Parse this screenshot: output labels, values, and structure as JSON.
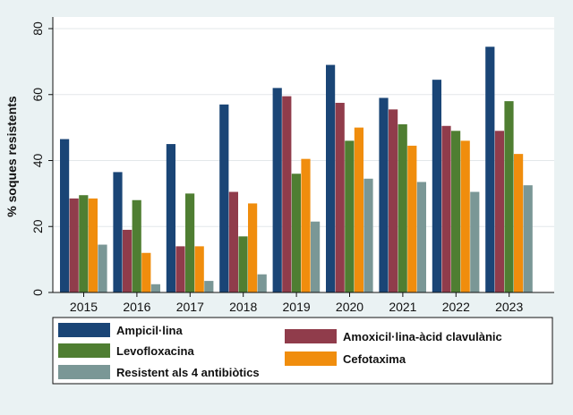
{
  "chart_data": {
    "type": "bar",
    "ylabel": "% soques resistents",
    "xlabel": "",
    "ylim": [
      0,
      80
    ],
    "yticks": [
      0,
      20,
      40,
      60,
      80
    ],
    "grid": true,
    "legend_position": "bottom",
    "categories": [
      "2015",
      "2016",
      "2017",
      "2018",
      "2019",
      "2020",
      "2021",
      "2022",
      "2023"
    ],
    "series": [
      {
        "name": "Ampicil·lina",
        "color": "#1a4576",
        "values": [
          46.5,
          36.5,
          45,
          57,
          62,
          69,
          59,
          64.5,
          74.5
        ]
      },
      {
        "name": "Amoxicil·lina-àcid clavulànic",
        "color": "#903c4b",
        "values": [
          28.5,
          19,
          14,
          30.5,
          59.5,
          57.5,
          55.5,
          50.5,
          49
        ]
      },
      {
        "name": "Levofloxacina",
        "color": "#4f7e32",
        "values": [
          29.5,
          28,
          30,
          17,
          36,
          46,
          51,
          49,
          58
        ]
      },
      {
        "name": "Cefotaxima",
        "color": "#f08d0d",
        "values": [
          28.5,
          12,
          14,
          27,
          40.5,
          50,
          44.5,
          46,
          42
        ]
      },
      {
        "name": "Resistent als 4 antibiòtics",
        "color": "#7a9796",
        "values": [
          14.5,
          2.5,
          3.5,
          5.5,
          21.5,
          34.5,
          33.5,
          30.5,
          32.5
        ]
      }
    ]
  }
}
